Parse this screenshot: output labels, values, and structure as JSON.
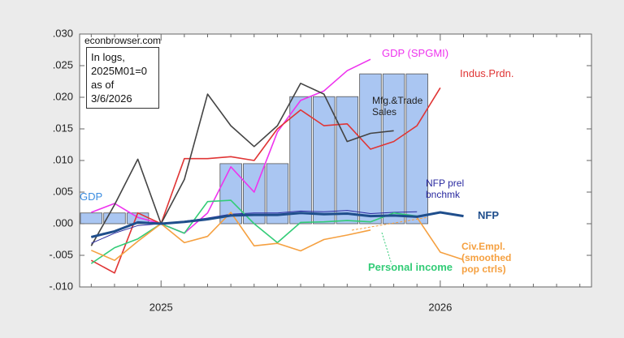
{
  "chart_data": {
    "type": "line",
    "source": "econbrowser.com",
    "note": "In logs,\n2025M01=0\nas of 3/6/2026",
    "categories": [
      null,
      null,
      null,
      "2025",
      null,
      null,
      null,
      null,
      null,
      null,
      null,
      null,
      null,
      null,
      null,
      "2026",
      null,
      null,
      null,
      null,
      null,
      null
    ],
    "ylim": [
      -0.01,
      0.03
    ],
    "yticks": [
      {
        "value": -0.01,
        "label": "-.010"
      },
      {
        "value": -0.005,
        "label": "-.005"
      },
      {
        "value": 0,
        "label": ".000"
      },
      {
        "value": 0.005,
        "label": ".005"
      },
      {
        "value": 0.01,
        "label": ".010"
      },
      {
        "value": 0.015,
        "label": ".015"
      },
      {
        "value": 0.02,
        "label": ".020"
      },
      {
        "value": 0.025,
        "label": ".025"
      },
      {
        "value": 0.03,
        "label": ".030"
      }
    ],
    "series": [
      {
        "name": "GDP",
        "type": "bar",
        "color": "#3b8de0",
        "fill": "#aac6f2",
        "values": [
          0.0017,
          0.0017,
          0.0017,
          null,
          null,
          null,
          0.0095,
          0.0095,
          0.0095,
          0.0201,
          0.0201,
          0.0201,
          0.0237,
          0.0237,
          0.0237,
          null,
          null,
          null,
          null,
          null,
          null,
          null
        ]
      },
      {
        "name": "GDP (SPGMI)",
        "type": "line",
        "color": "#ee33ee",
        "values": [
          0.0018,
          0.0032,
          0.001,
          0,
          -0.0015,
          0.0017,
          0.009,
          0.005,
          0.0145,
          0.0195,
          0.021,
          0.0242,
          0.026,
          null,
          null,
          null,
          null,
          null,
          null,
          null,
          null,
          null
        ]
      },
      {
        "name": "Indus.Prdn.",
        "type": "line",
        "color": "#e03535",
        "values": [
          -0.0058,
          -0.0078,
          0.0017,
          0,
          0.0103,
          0.0103,
          0.0106,
          0.01,
          0.015,
          0.018,
          0.0155,
          0.0158,
          0.0118,
          0.013,
          0.0155,
          0.0215,
          null,
          null,
          null,
          null,
          null,
          null
        ]
      },
      {
        "name": "Mfg.&Trade\nSales",
        "type": "line",
        "color": "#444444",
        "values": [
          -0.0035,
          0.003,
          0.0102,
          0,
          0.007,
          0.0205,
          0.0155,
          0.0122,
          0.0155,
          0.0222,
          0.0205,
          0.013,
          0.0143,
          0.0147,
          null,
          null,
          null,
          null,
          null,
          null,
          null,
          null
        ]
      },
      {
        "name": "NFP prel\nbnchmk",
        "type": "line",
        "color": "#2a2aa0",
        "values": [
          -0.0031,
          -0.0015,
          -0.0003,
          0,
          0.0004,
          0.0009,
          0.0015,
          0.0017,
          0.0017,
          0.002,
          0.0019,
          0.0021,
          0.0016,
          0.0018,
          0.0019,
          null,
          null,
          null,
          null,
          null,
          null,
          null
        ]
      },
      {
        "name": "Personal income",
        "type": "line",
        "color": "#33cc77",
        "values": [
          -0.0063,
          -0.0038,
          -0.0024,
          0,
          -0.0015,
          0.0035,
          0.0037,
          0,
          -0.003,
          0.0002,
          0.0003,
          0.0005,
          0.0003,
          0.0017,
          0.0012,
          null,
          null,
          null,
          null,
          null,
          null,
          null
        ]
      },
      {
        "name": "Civ.Empl.\n(smoothed\npop ctrls)",
        "type": "line",
        "color": "#f5a040",
        "values": [
          -0.0042,
          -0.0058,
          -0.0028,
          0,
          -0.003,
          -0.002,
          0.0018,
          -0.0035,
          -0.0031,
          -0.0043,
          -0.0025,
          -0.0018,
          -0.001,
          null,
          0.001,
          -0.0045,
          -0.0057,
          null,
          null,
          null,
          null,
          null
        ]
      },
      {
        "name": "NFP",
        "type": "line",
        "color": "#1f4e8c",
        "values": [
          -0.0021,
          -0.0012,
          0.0002,
          0,
          0.0003,
          0.0007,
          0.0013,
          0.0014,
          0.0014,
          0.0017,
          0.0015,
          0.0016,
          0.0012,
          0.0013,
          0.0011,
          0.0018,
          0.0012,
          null,
          null,
          null,
          null,
          null
        ]
      }
    ]
  }
}
